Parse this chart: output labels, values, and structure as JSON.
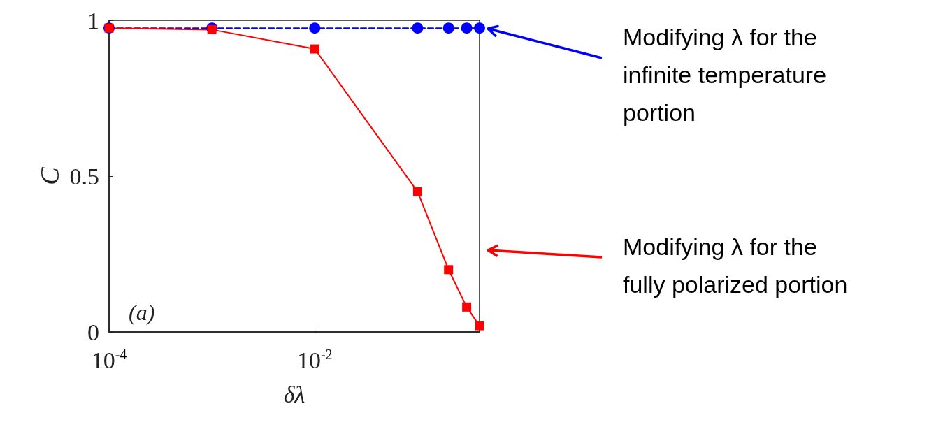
{
  "chart_data": {
    "type": "line",
    "xlabel": "δλ",
    "ylabel": "C",
    "log": "x",
    "xlim": [
      0.0001,
      0.4
    ],
    "xticks": [
      {
        "value": 0.0001,
        "label": "10$^{-4}$"
      },
      {
        "value": 0.01,
        "label": "10$^{-2}$"
      }
    ],
    "ylim": [
      0,
      1
    ],
    "yticks": [
      0,
      0.5,
      1
    ],
    "grid": false,
    "x": [
      0.0001,
      0.001,
      0.01,
      0.1,
      0.2,
      0.3,
      0.4
    ],
    "series": [
      {
        "color": "#0000ff",
        "marker": "circle",
        "line_style": "dashed",
        "values": [
          0.975,
          0.975,
          0.975,
          0.975,
          0.975,
          0.975,
          0.975
        ]
      },
      {
        "color": "#ff0000",
        "marker": "square",
        "line_style": "solid",
        "values": [
          0.975,
          0.97,
          0.908,
          0.45,
          0.2,
          0.08,
          0.02
        ]
      }
    ],
    "annotations": [
      "(a)",
      "Modifying λ for the infinite temperature portion",
      "Modifying λ for the fully polarized portion"
    ]
  }
}
